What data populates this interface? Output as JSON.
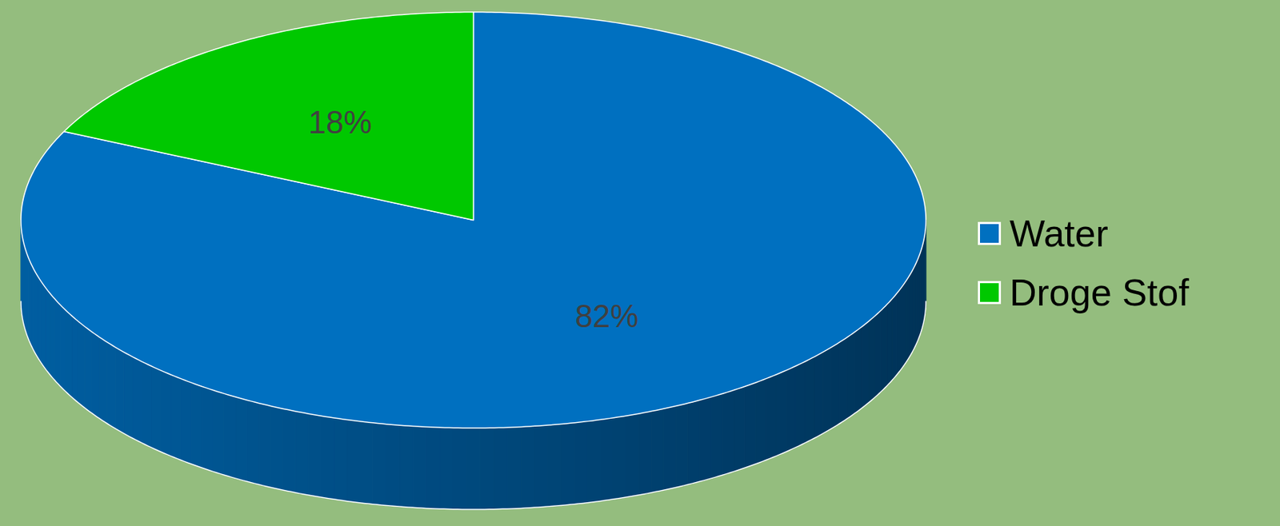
{
  "chart_data": {
    "type": "pie",
    "categories": [
      "Water",
      "Droge Stof"
    ],
    "values": [
      82,
      18
    ],
    "value_labels": [
      "82%",
      "18%"
    ],
    "colors": [
      "#0070c0",
      "#00c800"
    ],
    "data_labels": true,
    "legend": "right"
  }
}
